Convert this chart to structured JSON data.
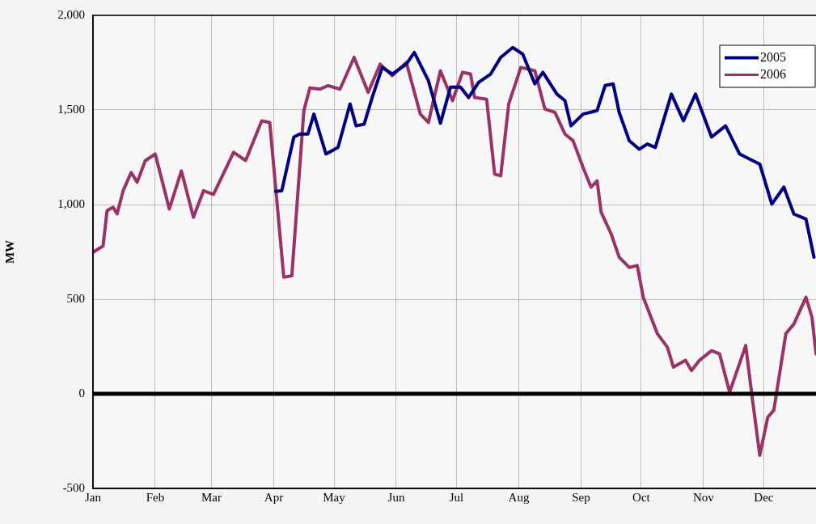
{
  "chart_data": {
    "type": "line",
    "ylabel": "MW",
    "xlim": [
      "--01-01",
      "--12-27"
    ],
    "xticks": [
      {
        "value": "--01-01",
        "label": "Jan"
      },
      {
        "value": "--02-01",
        "label": "Feb"
      },
      {
        "value": "--03-01",
        "label": "Mar"
      },
      {
        "value": "--04-01",
        "label": "Apr"
      },
      {
        "value": "--05-01",
        "label": "May"
      },
      {
        "value": "--06-01",
        "label": "Jun"
      },
      {
        "value": "--07-01",
        "label": "Jul"
      },
      {
        "value": "--08-01",
        "label": "Aug"
      },
      {
        "value": "--09-01",
        "label": "Sep"
      },
      {
        "value": "--10-01",
        "label": "Oct"
      },
      {
        "value": "--11-01",
        "label": "Nov"
      },
      {
        "value": "--12-01",
        "label": "Dec"
      }
    ],
    "ylim": [
      -500,
      2000
    ],
    "yticks": [
      {
        "value": -500,
        "label": "-500"
      },
      {
        "value": 0,
        "label": "0"
      },
      {
        "value": 500,
        "label": "500"
      },
      {
        "value": 1000,
        "label": "1,000"
      },
      {
        "value": 1500,
        "label": "1,500"
      },
      {
        "value": 2000,
        "label": "2,000"
      }
    ],
    "grid": true,
    "legend": "top right",
    "marker": "none",
    "line_style": "solid",
    "ref_lines": [
      {
        "axis": "y",
        "value": 0,
        "color": "#000000"
      }
    ],
    "series": [
      {
        "name": "2005",
        "color": "#000080",
        "x": [
          "--04-02",
          "--04-05",
          "--04-11",
          "--04-14",
          "--04-18",
          "--04-21",
          "--04-27",
          "--05-03",
          "--05-09",
          "--05-12",
          "--05-16",
          "--05-20",
          "--05-25",
          "--05-30",
          "--06-06",
          "--06-10",
          "--06-17",
          "--06-23",
          "--06-28",
          "--07-03",
          "--07-07",
          "--07-12",
          "--07-18",
          "--07-23",
          "--07-29",
          "--08-03",
          "--08-09",
          "--08-13",
          "--08-20",
          "--08-24",
          "--08-27",
          "--09-02",
          "--09-09",
          "--09-13",
          "--09-17",
          "--09-20",
          "--09-25",
          "--09-30",
          "--10-04",
          "--10-08",
          "--10-16",
          "--10-22",
          "--10-28",
          "--11-05",
          "--11-12",
          "--11-19",
          "--11-29",
          "--12-05",
          "--12-11",
          "--12-16",
          "--12-22",
          "--12-26"
        ],
        "values": [
          1070,
          1073,
          1357,
          1373,
          1373,
          1478,
          1267,
          1302,
          1532,
          1416,
          1425,
          1566,
          1725,
          1690,
          1742,
          1804,
          1655,
          1430,
          1621,
          1621,
          1566,
          1646,
          1690,
          1778,
          1830,
          1795,
          1638,
          1699,
          1584,
          1549,
          1416,
          1478,
          1497,
          1629,
          1638,
          1488,
          1338,
          1293,
          1320,
          1302,
          1584,
          1443,
          1584,
          1357,
          1416,
          1267,
          1214,
          1003,
          1092,
          950,
          924,
          722
        ]
      },
      {
        "name": "2006",
        "color": "#993366",
        "x": [
          "--01-01",
          "--01-06",
          "--01-08",
          "--01-11",
          "--01-13",
          "--01-16",
          "--01-20",
          "--01-23",
          "--01-27",
          "--02-01",
          "--02-08",
          "--02-14",
          "--02-20",
          "--02-25",
          "--03-02",
          "--03-12",
          "--03-18",
          "--03-26",
          "--03-30",
          "--04-06",
          "--04-10",
          "--04-16",
          "--04-19",
          "--04-24",
          "--04-28",
          "--05-04",
          "--05-11",
          "--05-18",
          "--05-24",
          "--05-30",
          "--06-06",
          "--06-13",
          "--06-17",
          "--06-23",
          "--06-29",
          "--07-04",
          "--07-08",
          "--07-10",
          "--07-16",
          "--07-20",
          "--07-23",
          "--07-27",
          "--08-02",
          "--08-09",
          "--08-14",
          "--08-19",
          "--08-24",
          "--08-28",
          "--09-02",
          "--09-06",
          "--09-09",
          "--09-11",
          "--09-16",
          "--09-20",
          "--09-25",
          "--09-29",
          "--10-02",
          "--10-09",
          "--10-14",
          "--10-17",
          "--10-23",
          "--10-26",
          "--10-30",
          "--11-05",
          "--11-09",
          "--11-14",
          "--11-22",
          "--11-25",
          "--11-29",
          "--12-03",
          "--12-06",
          "--12-12",
          "--12-16",
          "--12-22",
          "--12-25",
          "--12-27"
        ],
        "values": [
          748,
          781,
          968,
          986,
          951,
          1073,
          1170,
          1118,
          1232,
          1267,
          977,
          1178,
          933,
          1073,
          1054,
          1276,
          1233,
          1442,
          1434,
          616,
          624,
          1497,
          1616,
          1610,
          1629,
          1610,
          1778,
          1593,
          1742,
          1681,
          1751,
          1478,
          1434,
          1707,
          1549,
          1699,
          1690,
          1566,
          1557,
          1161,
          1152,
          1532,
          1725,
          1707,
          1505,
          1488,
          1373,
          1338,
          1197,
          1092,
          1126,
          960,
          845,
          722,
          668,
          678,
          510,
          318,
          246,
          141,
          177,
          123,
          177,
          228,
          211,
          9,
          255,
          0,
          -325,
          -123,
          -87,
          318,
          369,
          510,
          405,
          211
        ]
      }
    ]
  }
}
